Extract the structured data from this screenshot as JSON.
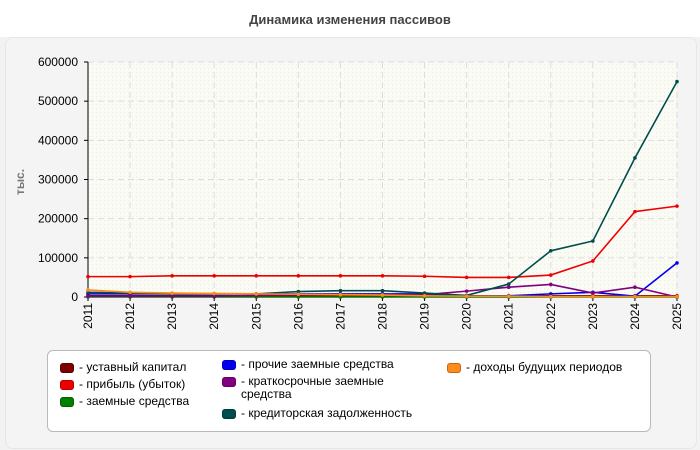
{
  "chart_data": {
    "type": "line",
    "title": "Динамика изменения пассивов",
    "ylabel": "тыс.",
    "xlabel": "",
    "categories": [
      "2011",
      "2012",
      "2013",
      "2014",
      "2015",
      "2016",
      "2017",
      "2018",
      "2019",
      "2020",
      "2021",
      "2022",
      "2023",
      "2024",
      "2025"
    ],
    "ylim": [
      0,
      600000
    ],
    "yticks": [
      0,
      100000,
      200000,
      300000,
      400000,
      500000,
      600000
    ],
    "grid": true,
    "legend_position": "bottom",
    "series": [
      {
        "name": "уставный капитал",
        "color": "#7f0000",
        "values": [
          3000,
          3000,
          3000,
          3000,
          3000,
          3000,
          3000,
          3000,
          3000,
          3000,
          3000,
          3000,
          3000,
          3000,
          3000
        ]
      },
      {
        "name": "прибыль (убыток)",
        "color": "#ee0000",
        "values": [
          52000,
          52000,
          54000,
          54000,
          54000,
          54000,
          54000,
          54000,
          53000,
          50000,
          50000,
          56000,
          92000,
          218000,
          232000
        ]
      },
      {
        "name": "заемные средства",
        "color": "#008000",
        "values": [
          0,
          0,
          0,
          0,
          0,
          0,
          0,
          0,
          0,
          0,
          0,
          0,
          0,
          0,
          0
        ]
      },
      {
        "name": "прочие заемные средства",
        "color": "#0000ee",
        "values": [
          8000,
          8000,
          8000,
          8000,
          8000,
          8000,
          8000,
          8000,
          8000,
          2000,
          3000,
          8000,
          12000,
          2000,
          87000
        ]
      },
      {
        "name": "краткосрочные заемные средства",
        "color": "#800080",
        "values": [
          2000,
          2000,
          2000,
          2000,
          4000,
          5000,
          6000,
          6000,
          6000,
          15000,
          25000,
          32000,
          10000,
          25000,
          0
        ]
      },
      {
        "name": "кредиторская задолженность",
        "color": "#004d4d",
        "values": [
          12000,
          10000,
          8000,
          8000,
          8000,
          14000,
          16000,
          16000,
          10000,
          4000,
          33000,
          118000,
          143000,
          355000,
          550000
        ]
      },
      {
        "name": "доходы будущих периодов",
        "color": "#ff8c1a",
        "values": [
          18000,
          12000,
          10000,
          9000,
          8000,
          7000,
          6000,
          5000,
          3000,
          2000,
          2000,
          1000,
          1000,
          1000,
          1000
        ]
      }
    ]
  }
}
